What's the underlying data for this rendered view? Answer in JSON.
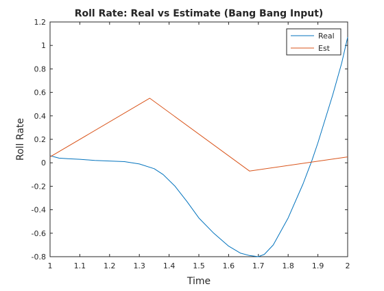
{
  "chart_data": {
    "type": "line",
    "title": "Roll Rate: Real vs Estimate (Bang Bang Input)",
    "xlabel": "Time",
    "ylabel": "Roll Rate",
    "xlim": [
      1,
      2
    ],
    "ylim": [
      -0.8,
      1.2
    ],
    "xticks": [
      1,
      1.1,
      1.2,
      1.3,
      1.4,
      1.5,
      1.6,
      1.7,
      1.8,
      1.9,
      2
    ],
    "xtick_labels": [
      "1",
      "1.1",
      "1.2",
      "1.3",
      "1.4",
      "1.5",
      "1.6",
      "1.7",
      "1.8",
      "1.9",
      "2"
    ],
    "yticks": [
      -0.8,
      -0.6,
      -0.4,
      -0.2,
      0,
      0.2,
      0.4,
      0.6,
      0.8,
      1,
      1.2
    ],
    "ytick_labels": [
      "-0.8",
      "-0.6",
      "-0.4",
      "-0.2",
      "0",
      "0.2",
      "0.4",
      "0.6",
      "0.8",
      "1",
      "1.2"
    ],
    "grid": false,
    "legend": {
      "position": "top-right",
      "entries": [
        "Real",
        "Est"
      ]
    },
    "series": [
      {
        "name": "Real",
        "color": "#0072BD",
        "x": [
          1.0,
          1.03,
          1.06,
          1.1,
          1.15,
          1.2,
          1.25,
          1.3,
          1.35,
          1.38,
          1.42,
          1.46,
          1.5,
          1.55,
          1.6,
          1.64,
          1.67,
          1.7,
          1.72,
          1.75,
          1.8,
          1.85,
          1.88,
          1.9,
          1.95,
          1.98,
          2.0
        ],
        "y": [
          0.06,
          0.04,
          0.035,
          0.03,
          0.02,
          0.015,
          0.01,
          -0.01,
          -0.05,
          -0.1,
          -0.2,
          -0.33,
          -0.47,
          -0.6,
          -0.71,
          -0.77,
          -0.79,
          -0.8,
          -0.78,
          -0.7,
          -0.47,
          -0.18,
          0.02,
          0.17,
          0.58,
          0.85,
          1.07
        ]
      },
      {
        "name": "Est",
        "color": "#D95319",
        "x": [
          1.0,
          1.335,
          1.67,
          2.0
        ],
        "y": [
          0.05,
          0.55,
          -0.07,
          0.05
        ]
      }
    ]
  }
}
